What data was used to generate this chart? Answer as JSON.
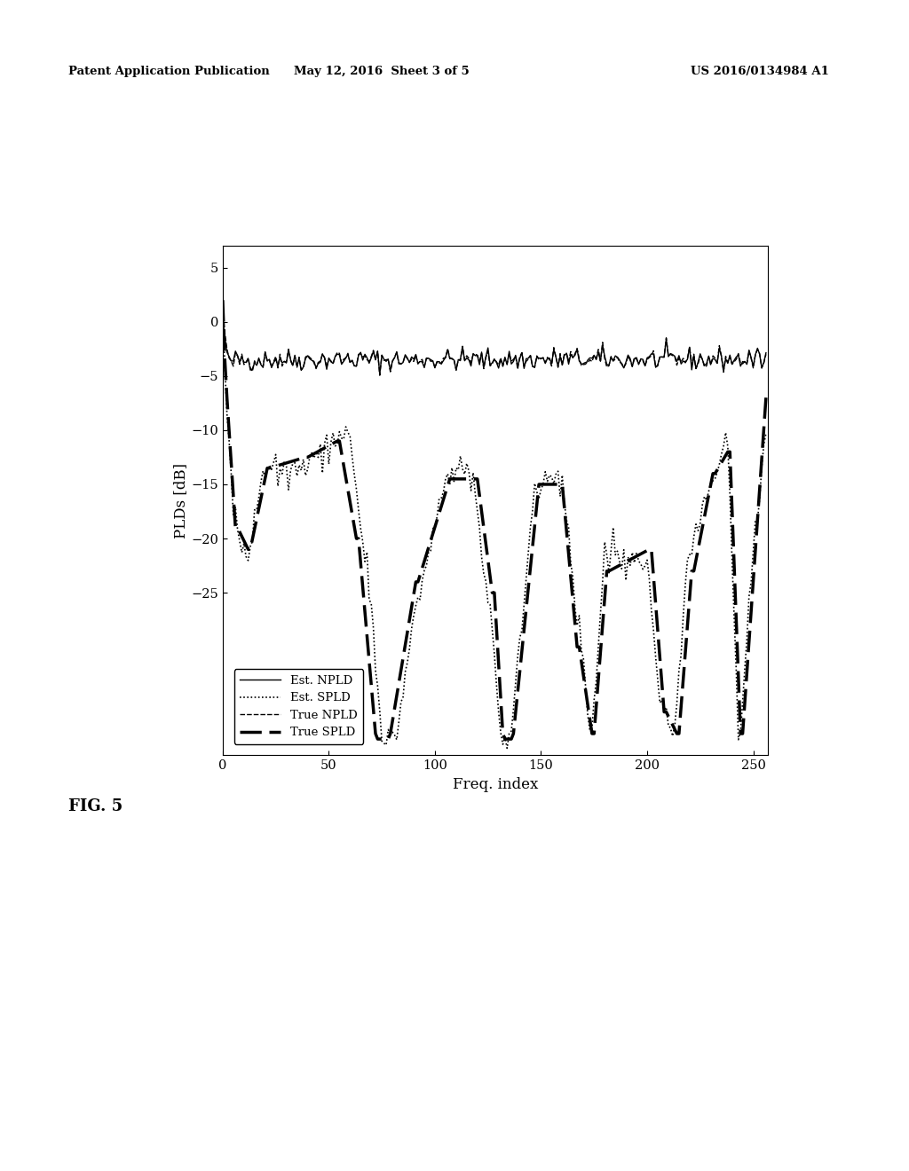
{
  "header_left": "Patent Application Publication",
  "header_center": "May 12, 2016  Sheet 3 of 5",
  "header_right": "US 2016/0134984 A1",
  "fig_label": "FIG. 5",
  "xlabel": "Freq. index",
  "ylabel": "PLDs [dB]",
  "xlim": [
    0,
    257
  ],
  "ylim": [
    -40,
    7
  ],
  "yticks": [
    5,
    0,
    -5,
    -10,
    -15,
    -20,
    -25
  ],
  "xticks": [
    0,
    50,
    100,
    150,
    200,
    250
  ],
  "background": "#ffffff",
  "legend_entries": [
    "Est. NPLD",
    "Est. SPLD",
    "True NPLD",
    "True SPLD"
  ]
}
